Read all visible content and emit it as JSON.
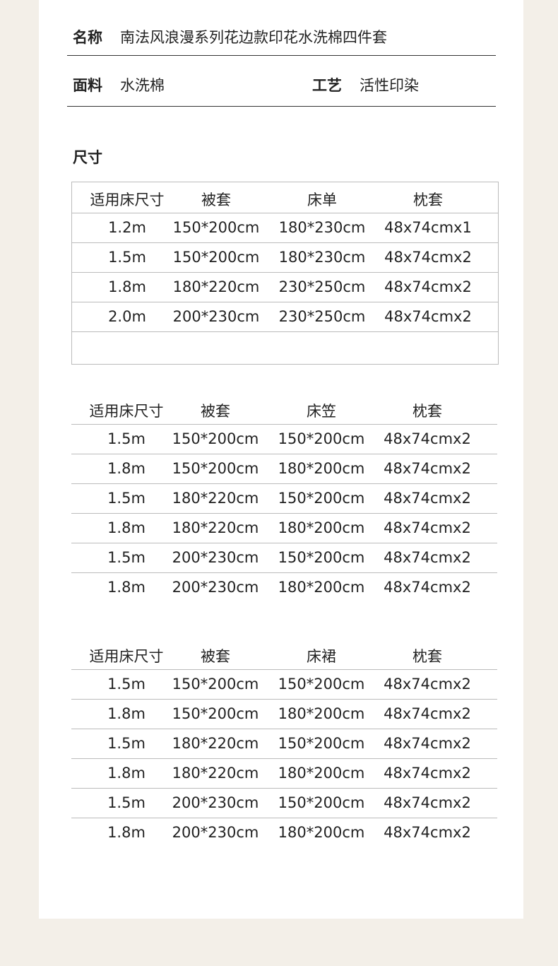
{
  "info": {
    "name_label": "名称",
    "name_value": "南法风浪漫系列花边款印花水洗棉四件套",
    "fabric_label": "面料",
    "fabric_value": "水洗棉",
    "craft_label": "工艺",
    "craft_value": "活性印染",
    "size_heading": "尺寸"
  },
  "tables": [
    {
      "headers": [
        "适用床尺寸",
        "被套",
        "床单",
        "枕套"
      ],
      "rows": [
        [
          "1.2m",
          "150*200cm",
          "180*230cm",
          "48x74cmx1"
        ],
        [
          "1.5m",
          "150*200cm",
          "180*230cm",
          "48x74cmx2"
        ],
        [
          "1.8m",
          "180*220cm",
          "230*250cm",
          "48x74cmx2"
        ],
        [
          "2.0m",
          "200*230cm",
          "230*250cm",
          "48x74cmx2"
        ],
        [
          "",
          "",
          "",
          ""
        ]
      ]
    },
    {
      "headers": [
        "适用床尺寸",
        "被套",
        "床笠",
        "枕套"
      ],
      "rows": [
        [
          "1.5m",
          "150*200cm",
          "150*200cm",
          "48x74cmx2"
        ],
        [
          "1.8m",
          "150*200cm",
          "180*200cm",
          "48x74cmx2"
        ],
        [
          "1.5m",
          "180*220cm",
          "150*200cm",
          "48x74cmx2"
        ],
        [
          "1.8m",
          "180*220cm",
          "180*200cm",
          "48x74cmx2"
        ],
        [
          "1.5m",
          "200*230cm",
          "150*200cm",
          "48x74cmx2"
        ],
        [
          "1.8m",
          "200*230cm",
          "180*200cm",
          "48x74cmx2"
        ]
      ]
    },
    {
      "headers": [
        "适用床尺寸",
        "被套",
        "床裙",
        "枕套"
      ],
      "rows": [
        [
          "1.5m",
          "150*200cm",
          "150*200cm",
          "48x74cmx2"
        ],
        [
          "1.8m",
          "150*200cm",
          "180*200cm",
          "48x74cmx2"
        ],
        [
          "1.5m",
          "180*220cm",
          "150*200cm",
          "48x74cmx2"
        ],
        [
          "1.8m",
          "180*220cm",
          "180*200cm",
          "48x74cmx2"
        ],
        [
          "1.5m",
          "200*230cm",
          "150*200cm",
          "48x74cmx2"
        ],
        [
          "1.8m",
          "200*230cm",
          "180*200cm",
          "48x74cmx2"
        ]
      ]
    }
  ]
}
